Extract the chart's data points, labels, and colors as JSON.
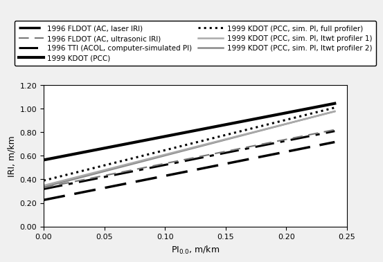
{
  "xlabel": "PI$_{0.0}$, m/km",
  "ylabel": "IRI, m/km",
  "xlim": [
    0.0,
    0.25
  ],
  "ylim": [
    0.0,
    1.2
  ],
  "xticks": [
    0.0,
    0.05,
    0.1,
    0.15,
    0.2,
    0.25
  ],
  "yticks": [
    0.0,
    0.2,
    0.4,
    0.6,
    0.8,
    1.0,
    1.2
  ],
  "lines": [
    {
      "label": "1996 FLDOT (AC, laser IRI)",
      "intercept": 0.225,
      "slope": 2.05,
      "color": "#000000",
      "linestyle": "--",
      "linewidth": 2.5,
      "dashes": [
        9,
        4
      ]
    },
    {
      "label": "1996 TTI (ACOL, computer-simulated PI)",
      "intercept": 0.318,
      "slope": 2.05,
      "color": "#000000",
      "linestyle": "-.",
      "linewidth": 2.2,
      "dashes": [
        9,
        3,
        2,
        3
      ]
    },
    {
      "label": "1999 KDOT (PCC, sim. PI, full profiler)",
      "intercept": 0.39,
      "slope": 2.58,
      "color": "#000000",
      "linestyle": "dotted",
      "linewidth": 2.2,
      "dashes": [
        2,
        2
      ]
    },
    {
      "label": "1999 KDOT (PCC, sim. PI, ltwt profiler 2)",
      "intercept": 0.335,
      "slope": 2.68,
      "color": "#888888",
      "linestyle": "-",
      "linewidth": 1.8,
      "dashes": null
    },
    {
      "label": "1996 FLDOT (AC, ultrasonic IRI)",
      "intercept": 0.33,
      "slope": 2.05,
      "color": "#777777",
      "linestyle": "--",
      "linewidth": 1.5,
      "dashes": [
        7,
        4
      ]
    },
    {
      "label": "1999 KDOT (PCC)",
      "intercept": 0.565,
      "slope": 2.0,
      "color": "#000000",
      "linestyle": "-",
      "linewidth": 3.0,
      "dashes": null
    },
    {
      "label": "1999 KDOT (PCC, sim. PI, ltwt profiler 1)",
      "intercept": 0.348,
      "slope": 2.62,
      "color": "#aaaaaa",
      "linestyle": "-",
      "linewidth": 1.8,
      "dashes": null
    }
  ],
  "legend_order": [
    0,
    4,
    1,
    5,
    2,
    6,
    3
  ],
  "figure_facecolor": "#f0f0f0",
  "axes_facecolor": "#ffffff",
  "font_size_ticks": 8,
  "font_size_labels": 9,
  "font_size_legend": 7.5
}
